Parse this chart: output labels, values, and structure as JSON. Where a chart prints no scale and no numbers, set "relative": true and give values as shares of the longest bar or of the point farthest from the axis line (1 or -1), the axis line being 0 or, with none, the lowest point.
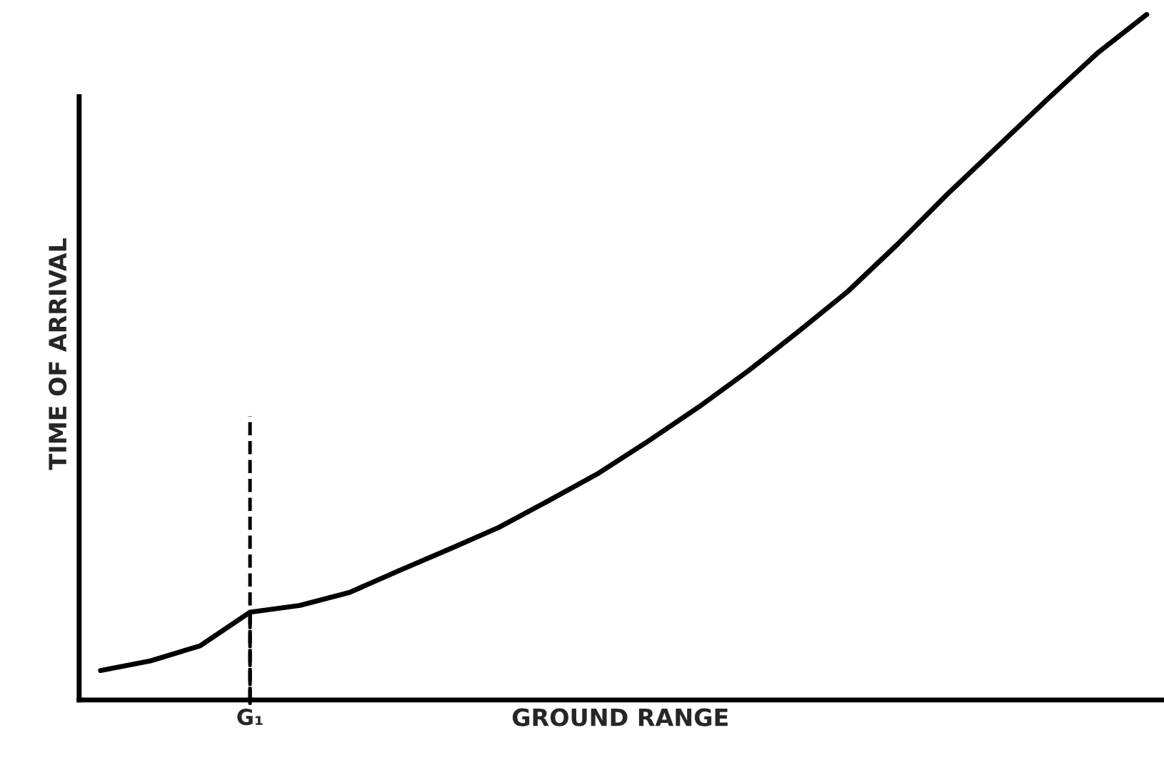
{
  "chart_data": {
    "type": "line",
    "relative": true,
    "xlabel": "GROUND RANGE",
    "ylabel": "TIME OF ARRIVAL",
    "tick_labels": false,
    "line_style": "solid",
    "categories": [
      null,
      null,
      null,
      null,
      null,
      null,
      null,
      null,
      null,
      null,
      null,
      null,
      null,
      null,
      null,
      null,
      null,
      null,
      null,
      null,
      null,
      null
    ],
    "series": [
      {
        "color": "#000000",
        "values": [
          0.043,
          0.057,
          0.079,
          0.128,
          0.138,
          0.157,
          0.189,
          0.22,
          0.252,
          0.291,
          0.331,
          0.378,
          0.427,
          0.48,
          0.537,
          0.596,
          0.665,
          0.738,
          0.807,
          0.876,
          0.943,
          1.0
        ]
      }
    ],
    "annotations": [
      {
        "text": "G₁",
        "y": 0.128
      }
    ]
  }
}
